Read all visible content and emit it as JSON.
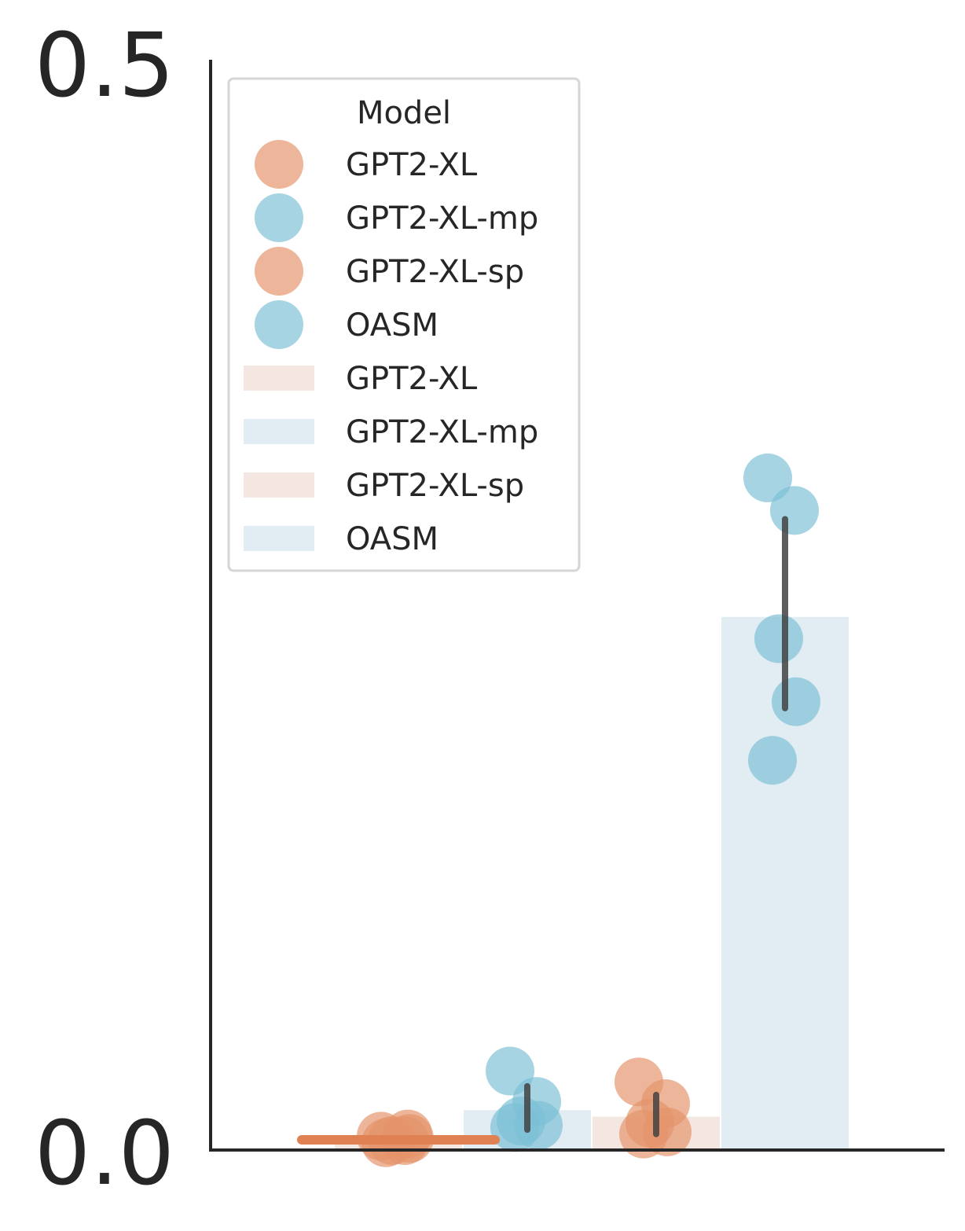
{
  "chart_data": {
    "type": "bar",
    "ylim": [
      0,
      0.5
    ],
    "y_ticks": [
      {
        "value": 0.5,
        "label": "0.5"
      },
      {
        "value": 0.0,
        "label": "0.0"
      }
    ],
    "xlabel": "",
    "ylabel": "",
    "grid": false,
    "colors": {
      "orange": "#e4936a",
      "blue": "#7cbfd6",
      "orange_bar": "#f4e6e0",
      "blue_bar": "#e1edf2",
      "orange_line": "#df8152",
      "blue_line": "#6fb6cd",
      "errorbar": "#424242",
      "axis": "#262626"
    },
    "series": [
      {
        "name": "GPT2-XL",
        "color_key": "orange",
        "mean": 0.004,
        "ci": [
          0.004,
          0.004
        ],
        "points": [
          0.006,
          0.007,
          0.004,
          0.005,
          0.003,
          0.004
        ]
      },
      {
        "name": "GPT2-XL-mp",
        "color_key": "blue",
        "mean": 0.018,
        "ci": [
          0.009,
          0.029
        ],
        "points": [
          0.036,
          0.022,
          0.013,
          0.011,
          0.01
        ]
      },
      {
        "name": "GPT2-XL-sp",
        "color_key": "orange",
        "mean": 0.015,
        "ci": [
          0.007,
          0.025
        ],
        "points": [
          0.031,
          0.021,
          0.012,
          0.008,
          0.007
        ]
      },
      {
        "name": "OASM",
        "color_key": "blue",
        "mean": 0.245,
        "ci": [
          0.203,
          0.29
        ],
        "points": [
          0.309,
          0.294,
          0.235,
          0.206,
          0.179
        ]
      }
    ],
    "legend": {
      "title": "Model",
      "location": "upper left",
      "entries": [
        {
          "label": "GPT2-XL",
          "kind": "marker",
          "color_key": "orange"
        },
        {
          "label": "GPT2-XL-mp",
          "kind": "marker",
          "color_key": "blue"
        },
        {
          "label": "GPT2-XL-sp",
          "kind": "marker",
          "color_key": "orange"
        },
        {
          "label": "OASM",
          "kind": "marker",
          "color_key": "blue"
        },
        {
          "label": "GPT2-XL",
          "kind": "patch",
          "color_key": "orange_bar"
        },
        {
          "label": "GPT2-XL-mp",
          "kind": "patch",
          "color_key": "blue_bar"
        },
        {
          "label": "GPT2-XL-sp",
          "kind": "patch",
          "color_key": "orange_bar"
        },
        {
          "label": "OASM",
          "kind": "patch",
          "color_key": "blue_bar"
        }
      ]
    }
  }
}
